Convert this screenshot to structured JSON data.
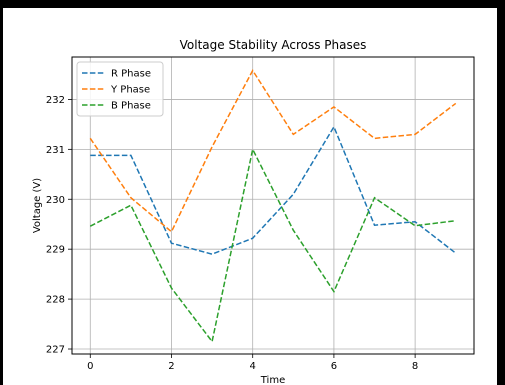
{
  "chart_data": {
    "type": "line",
    "title": "Voltage Stability Across Phases",
    "xlabel": "Time",
    "ylabel": "Voltage (V)",
    "x": [
      0,
      1,
      2,
      3,
      4,
      5,
      6,
      7,
      8,
      9
    ],
    "xticks": [
      "0",
      "2",
      "4",
      "6",
      "8"
    ],
    "xtick_values": [
      0,
      2,
      4,
      6,
      8
    ],
    "yticks": [
      "227",
      "228",
      "229",
      "230",
      "231",
      "232"
    ],
    "ytick_values": [
      227,
      228,
      229,
      230,
      231,
      232
    ],
    "xlim": [
      -0.45,
      9.45
    ],
    "ylim": [
      226.9,
      232.85
    ],
    "grid": true,
    "legend_position": "top-left",
    "line_style": "dashed",
    "series": [
      {
        "name": "R Phase",
        "color": "#1f77b4",
        "values": [
          230.88,
          230.88,
          229.12,
          228.9,
          229.22,
          230.1,
          231.45,
          229.48,
          229.55,
          228.92
        ]
      },
      {
        "name": "Y Phase",
        "color": "#ff7f0e",
        "values": [
          231.22,
          230.03,
          229.35,
          231.05,
          232.58,
          231.3,
          231.85,
          231.22,
          231.3,
          231.92
        ]
      },
      {
        "name": "B Phase",
        "color": "#2ca02c",
        "values": [
          229.46,
          229.88,
          228.22,
          227.15,
          231.0,
          229.38,
          228.15,
          230.03,
          229.47,
          229.57
        ]
      }
    ]
  }
}
